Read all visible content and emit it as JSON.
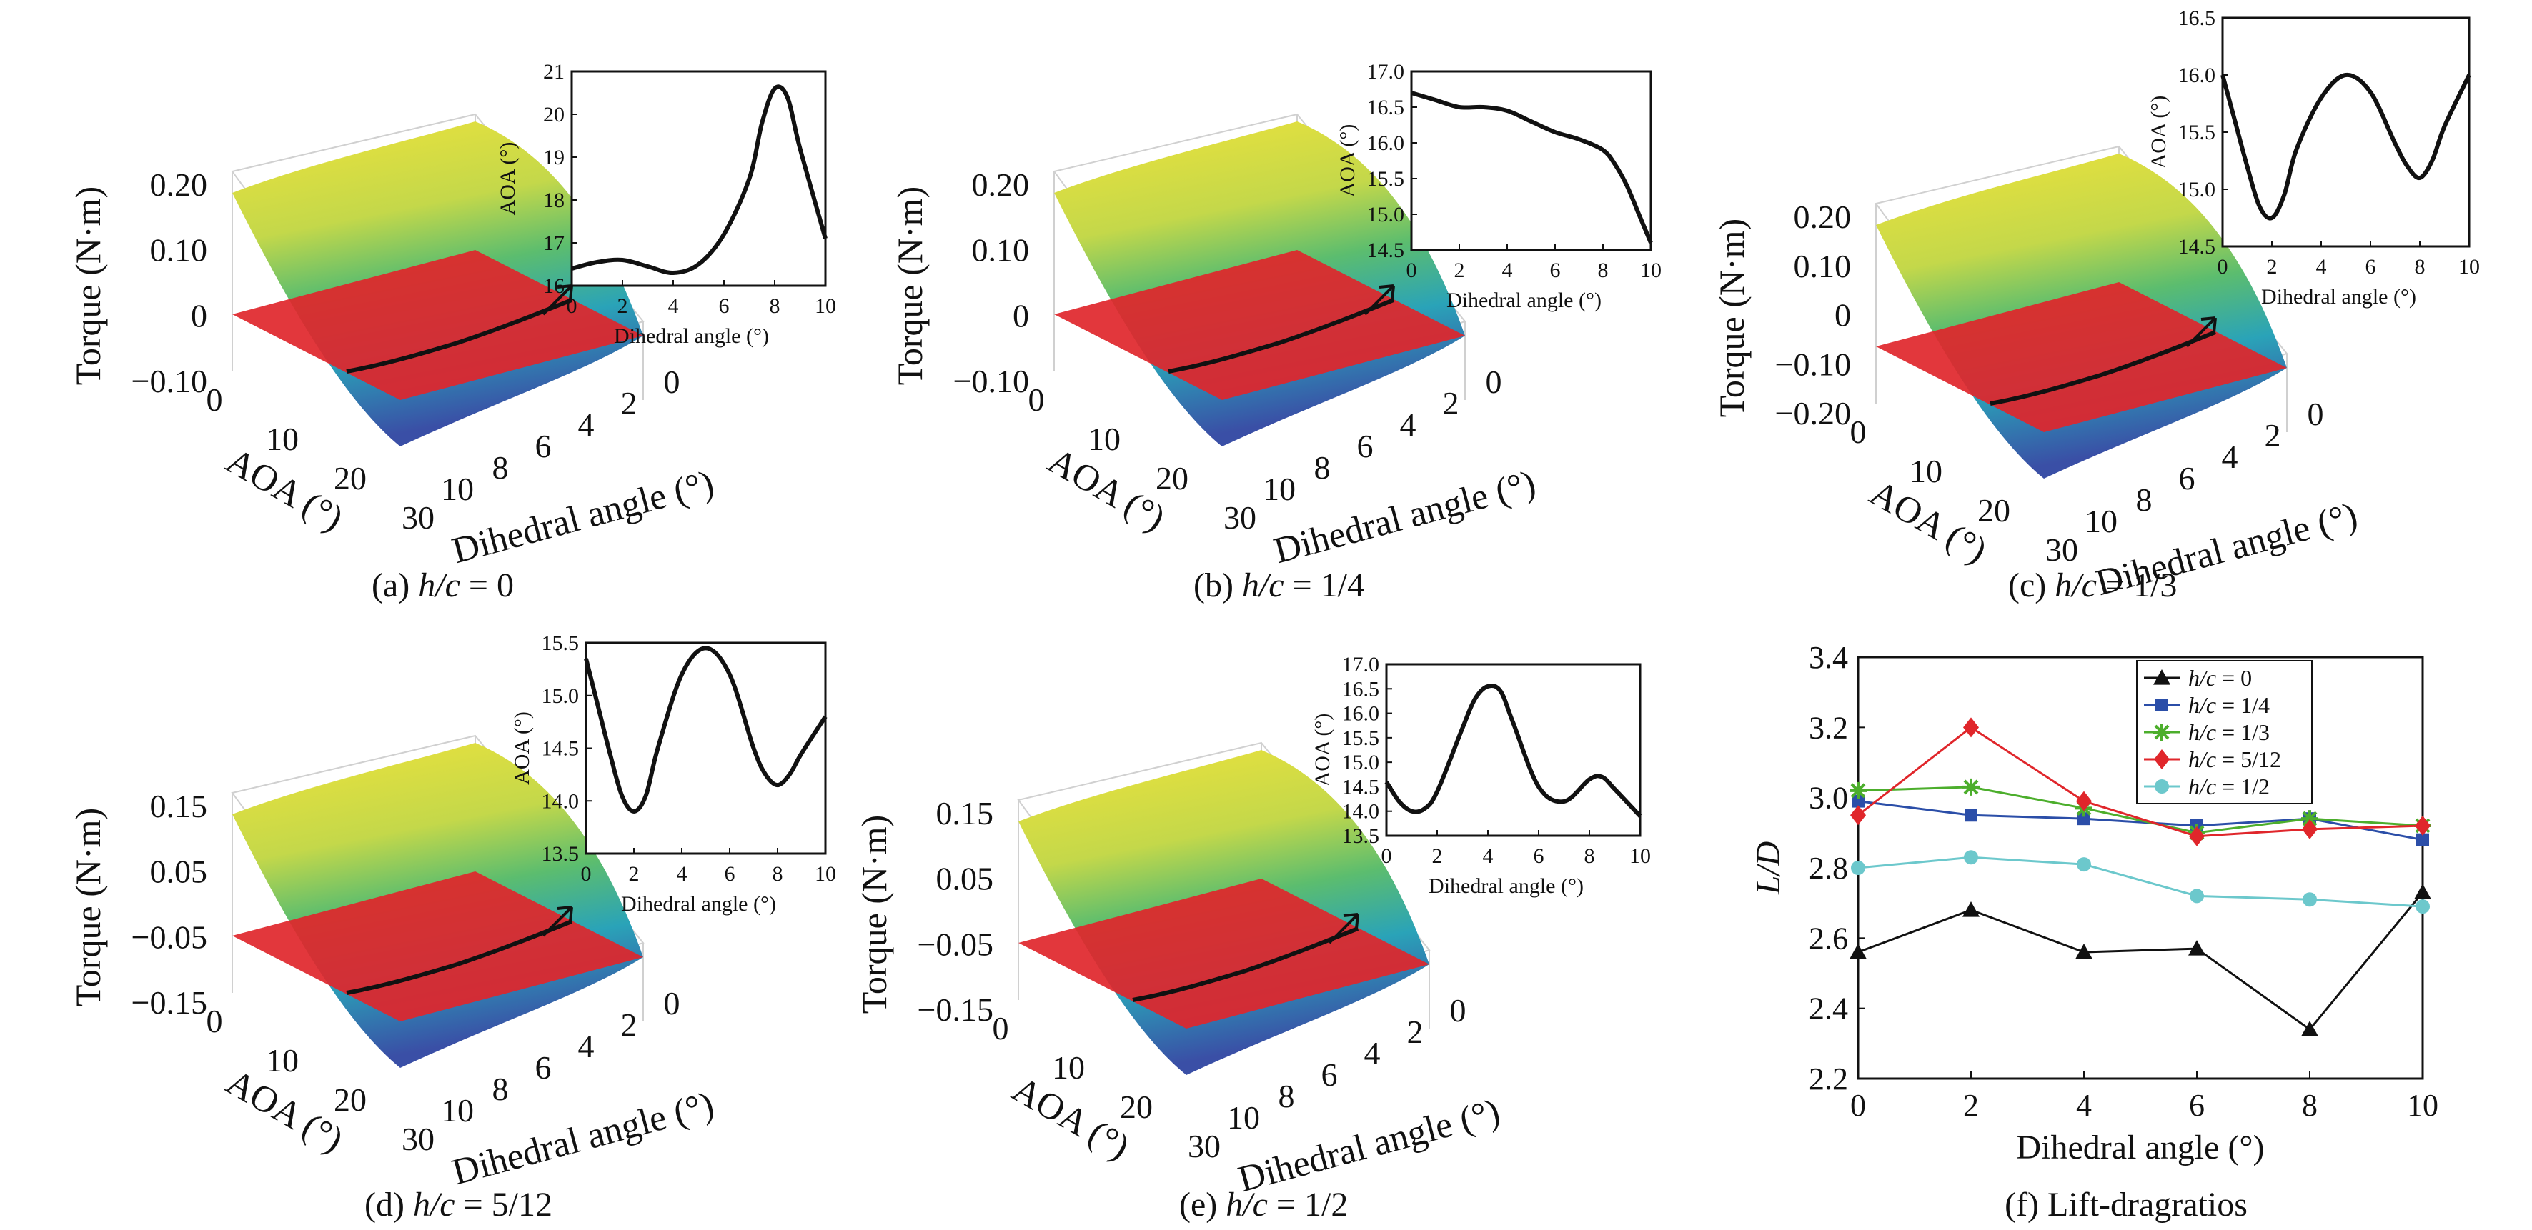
{
  "panels": [
    {
      "id": "a",
      "caption": {
        "prefix": "(a) ",
        "italic": "h/c",
        "suffix": " = 0"
      },
      "z_axis": {
        "label": "Torque (N·m)",
        "ticks": [
          "0.20",
          "0.10",
          "0",
          "−0.10"
        ]
      },
      "aoa_axis": {
        "label": "AOA (°)",
        "ticks": [
          "0",
          "10",
          "20",
          "30"
        ]
      },
      "dihedral_axis": {
        "label": "Dihedral angle (°)",
        "ticks": [
          "10",
          "8",
          "6",
          "4",
          "2",
          "0"
        ]
      },
      "inset": {
        "type": "line",
        "xlabel": "Dihedral angle (°)",
        "ylabel": "AOA (°)",
        "xticks": [
          0,
          2,
          4,
          6,
          8,
          10
        ],
        "yticks": [
          16,
          17,
          18,
          19,
          20,
          21
        ],
        "xlim": [
          0,
          10
        ],
        "ylim": [
          16,
          21
        ],
        "x": [
          0,
          1,
          2,
          3,
          4,
          5,
          6,
          7,
          7.5,
          8,
          8.5,
          9,
          10
        ],
        "y": [
          16.4,
          16.55,
          16.6,
          16.45,
          16.3,
          16.5,
          17.2,
          18.5,
          19.8,
          20.6,
          20.4,
          19.2,
          17.1
        ]
      }
    },
    {
      "id": "b",
      "caption": {
        "prefix": "(b) ",
        "italic": "h/c",
        "suffix": " = 1/4"
      },
      "z_axis": {
        "label": "Torque (N·m)",
        "ticks": [
          "0.20",
          "0.10",
          "0",
          "−0.10"
        ]
      },
      "aoa_axis": {
        "label": "AOA (°)",
        "ticks": [
          "0",
          "10",
          "20",
          "30"
        ]
      },
      "dihedral_axis": {
        "label": "Dihedral angle (°)",
        "ticks": [
          "10",
          "8",
          "6",
          "4",
          "2",
          "0"
        ]
      },
      "inset": {
        "type": "line",
        "xlabel": "Dihedral angle (°)",
        "ylabel": "AOA (°)",
        "xticks": [
          0,
          2,
          4,
          6,
          8,
          10
        ],
        "yticks": [
          "14.5",
          "15.0",
          "15.5",
          "16.0",
          "16.5",
          "17.0"
        ],
        "xlim": [
          0,
          10
        ],
        "ylim": [
          14.5,
          17.0
        ],
        "x": [
          0,
          1,
          2,
          3,
          4,
          5,
          6,
          7,
          8,
          8.5,
          9,
          9.5,
          10
        ],
        "y": [
          16.7,
          16.6,
          16.5,
          16.5,
          16.45,
          16.3,
          16.15,
          16.05,
          15.9,
          15.7,
          15.4,
          15.0,
          14.6
        ]
      }
    },
    {
      "id": "c",
      "caption": {
        "prefix": "(c) ",
        "italic": "h/c",
        "suffix": " = 1/3"
      },
      "z_axis": {
        "label": "Torque (N·m)",
        "ticks": [
          "0.20",
          "0.10",
          "0",
          "−0.10",
          "−0.20"
        ]
      },
      "aoa_axis": {
        "label": "AOA (°)",
        "ticks": [
          "0",
          "10",
          "20",
          "30"
        ]
      },
      "dihedral_axis": {
        "label": "Dihedral angle (°)",
        "ticks": [
          "10",
          "8",
          "6",
          "4",
          "2",
          "0"
        ]
      },
      "inset": {
        "type": "line",
        "xlabel": "Dihedral angle (°)",
        "ylabel": "AOA (°)",
        "xticks": [
          0,
          2,
          4,
          6,
          8,
          10
        ],
        "yticks": [
          "14.5",
          "15.0",
          "15.5",
          "16.0",
          "16.5"
        ],
        "xlim": [
          0,
          10
        ],
        "ylim": [
          14.5,
          16.5
        ],
        "x": [
          0,
          0.5,
          1,
          1.5,
          2,
          2.5,
          3,
          4,
          5,
          6,
          7,
          7.5,
          8,
          8.5,
          9,
          10
        ],
        "y": [
          16.0,
          15.6,
          15.2,
          14.85,
          14.75,
          14.95,
          15.35,
          15.8,
          16.0,
          15.85,
          15.4,
          15.2,
          15.1,
          15.25,
          15.55,
          16.0
        ]
      }
    },
    {
      "id": "d",
      "caption": {
        "prefix": "(d) ",
        "italic": "h/c",
        "suffix": " = 5/12"
      },
      "z_axis": {
        "label": "Torque (N·m)",
        "ticks": [
          "0.15",
          "0.05",
          "−0.05",
          "−0.15"
        ]
      },
      "aoa_axis": {
        "label": "AOA (°)",
        "ticks": [
          "0",
          "10",
          "20",
          "30"
        ]
      },
      "dihedral_axis": {
        "label": "Dihedral angle (°)",
        "ticks": [
          "10",
          "8",
          "6",
          "4",
          "2",
          "0"
        ]
      },
      "inset": {
        "type": "line",
        "xlabel": "Dihedral angle (°)",
        "ylabel": "AOA (°)",
        "xticks": [
          0,
          2,
          4,
          6,
          8,
          10
        ],
        "yticks": [
          "13.5",
          "14.0",
          "14.5",
          "15.0",
          "15.5"
        ],
        "xlim": [
          0,
          10
        ],
        "ylim": [
          13.5,
          15.5
        ],
        "x": [
          0,
          0.5,
          1,
          1.5,
          2,
          2.5,
          3,
          4,
          5,
          6,
          7,
          7.5,
          8,
          8.5,
          9,
          10
        ],
        "y": [
          15.35,
          14.9,
          14.45,
          14.05,
          13.9,
          14.05,
          14.5,
          15.2,
          15.45,
          15.2,
          14.5,
          14.25,
          14.15,
          14.25,
          14.45,
          14.8
        ]
      }
    },
    {
      "id": "e",
      "caption": {
        "prefix": "(e) ",
        "italic": "h/c",
        "suffix": " = 1/2"
      },
      "z_axis": {
        "label": "Torque (N·m)",
        "ticks": [
          "0.15",
          "0.05",
          "−0.05",
          "−0.15"
        ]
      },
      "aoa_axis": {
        "label": "AOA (°)",
        "ticks": [
          "0",
          "10",
          "20",
          "30"
        ]
      },
      "dihedral_axis": {
        "label": "Dihedral angle (°)",
        "ticks": [
          "10",
          "8",
          "6",
          "4",
          "2",
          "0"
        ]
      },
      "inset": {
        "type": "line",
        "xlabel": "Dihedral angle (°)",
        "ylabel": "AOA (°)",
        "xticks": [
          0,
          2,
          4,
          6,
          8,
          10
        ],
        "yticks": [
          "13.5",
          "14.0",
          "14.5",
          "15.0",
          "15.5",
          "16.0",
          "16.5",
          "17.0"
        ],
        "xlim": [
          0,
          10
        ],
        "ylim": [
          13.5,
          17.0
        ],
        "x": [
          0,
          0.5,
          1,
          1.5,
          2,
          3,
          3.5,
          4,
          4.5,
          5,
          6,
          7,
          8,
          8.5,
          9,
          10
        ],
        "y": [
          14.6,
          14.2,
          14.0,
          14.05,
          14.4,
          15.7,
          16.3,
          16.55,
          16.45,
          15.8,
          14.5,
          14.2,
          14.65,
          14.7,
          14.45,
          13.9
        ]
      }
    }
  ],
  "chart_data": [
    {
      "type": "line",
      "title": "",
      "caption": "(f) Lift-dragratios",
      "xlabel": "Dihedral angle (°)",
      "ylabel": "L/D",
      "x": [
        0,
        2,
        4,
        6,
        8,
        10
      ],
      "xlim": [
        0,
        10
      ],
      "ylim": [
        2.2,
        3.4
      ],
      "xticks": [
        "0",
        "2",
        "4",
        "6",
        "8",
        "10"
      ],
      "yticks": [
        "2.2",
        "2.4",
        "2.6",
        "2.8",
        "3.0",
        "3.2",
        "3.4"
      ],
      "grid": false,
      "legend": "top-right",
      "series": [
        {
          "name": "h/c = 0",
          "label_prefix": "h/c",
          "label_suffix": " = 0",
          "color": "#111111",
          "marker": "triangle",
          "values": [
            2.56,
            2.68,
            2.56,
            2.57,
            2.34,
            2.73
          ]
        },
        {
          "name": "h/c = 1/4",
          "label_prefix": "h/c",
          "label_suffix": " = 1/4",
          "color": "#2b4ea8",
          "marker": "square",
          "values": [
            2.99,
            2.95,
            2.94,
            2.92,
            2.94,
            2.88
          ]
        },
        {
          "name": "h/c = 1/3",
          "label_prefix": "h/c",
          "label_suffix": " = 1/3",
          "color": "#4cae2c",
          "marker": "star",
          "values": [
            3.02,
            3.03,
            2.97,
            2.9,
            2.94,
            2.92
          ]
        },
        {
          "name": "h/c = 5/12",
          "label_prefix": "h/c",
          "label_suffix": " = 5/12",
          "color": "#e0262b",
          "marker": "diamond",
          "values": [
            2.95,
            3.2,
            2.99,
            2.89,
            2.91,
            2.92
          ]
        },
        {
          "name": "h/c = 1/2",
          "label_prefix": "h/c",
          "label_suffix": " = 1/2",
          "color": "#6cc8cc",
          "marker": "circle",
          "values": [
            2.8,
            2.83,
            2.81,
            2.72,
            2.71,
            2.69
          ]
        }
      ]
    }
  ],
  "colors": {
    "plane": "#e0262b",
    "surface_top": "#f0e33a",
    "surface_mid": "#5cbd6e",
    "surface_low": "#2aa3b8",
    "surface_bottom": "#3a4fa6",
    "curve": "#111111"
  }
}
